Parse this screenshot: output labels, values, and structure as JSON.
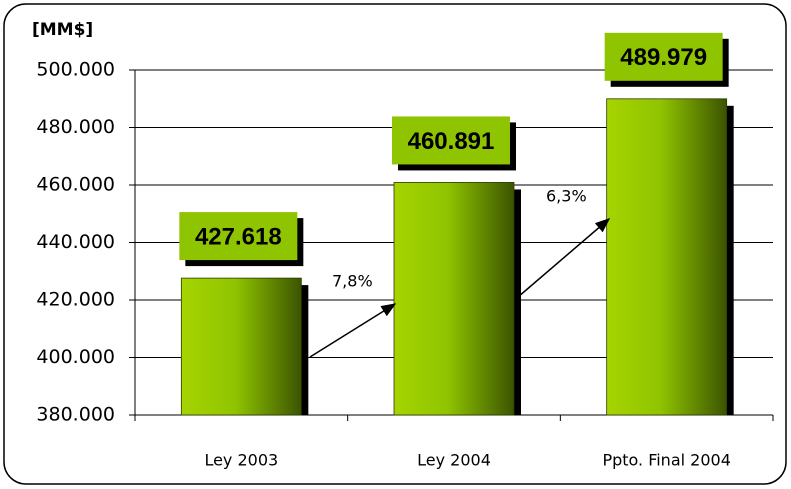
{
  "chart_data": {
    "type": "bar",
    "y_axis_label": "[MM$]",
    "categories": [
      "Ley 2003",
      "Ley 2004",
      "Ppto. Final 2004"
    ],
    "values": [
      427618,
      460891,
      489979
    ],
    "value_labels": [
      "427.618",
      "460.891",
      "489.979"
    ],
    "color": "#8fc400",
    "ylim": [
      380000,
      500000
    ],
    "yticks": [
      {
        "value": 380000,
        "label": "380.000"
      },
      {
        "value": 400000,
        "label": "400.000"
      },
      {
        "value": 420000,
        "label": "420.000"
      },
      {
        "value": 440000,
        "label": "440.000"
      },
      {
        "value": 460000,
        "label": "460.000"
      },
      {
        "value": 480000,
        "label": "480.000"
      },
      {
        "value": 500000,
        "label": "500.000"
      }
    ],
    "grid": true,
    "annotations": [
      "7,8%",
      "6,3%"
    ]
  }
}
